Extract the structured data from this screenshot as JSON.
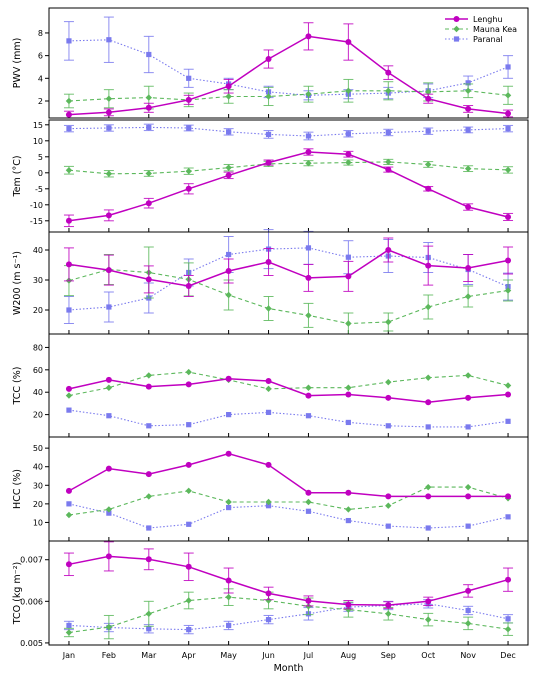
{
  "xlabel": "Month",
  "months": [
    "Jan",
    "Feb",
    "Mar",
    "Apr",
    "May",
    "Jun",
    "Jul",
    "Aug",
    "Sep",
    "Oct",
    "Nov",
    "Dec"
  ],
  "legend": {
    "position": "top-right",
    "entries": [
      "Lenghu",
      "Mauna Kea",
      "Paranal"
    ]
  },
  "colors": {
    "Lenghu": "#c000c0",
    "Mauna Kea": "#5cb85c",
    "Paranal": "#7a7aee"
  },
  "chart_data": [
    {
      "type": "line",
      "ylabel": "PWV (mm)",
      "ylim": [
        0.5,
        10.2
      ],
      "yticks": [
        2,
        4,
        6,
        8
      ],
      "series": [
        {
          "name": "Lenghu",
          "values": [
            0.8,
            1.0,
            1.4,
            2.1,
            3.3,
            5.7,
            7.7,
            7.2,
            4.5,
            2.2,
            1.3,
            0.9
          ],
          "errors": [
            0.3,
            0.3,
            0.4,
            0.4,
            0.6,
            0.8,
            1.2,
            1.6,
            0.6,
            0.4,
            0.3,
            0.3
          ]
        },
        {
          "name": "Mauna Kea",
          "values": [
            2.0,
            2.2,
            2.3,
            2.1,
            2.4,
            2.4,
            2.6,
            2.9,
            2.9,
            2.8,
            2.9,
            2.5
          ],
          "errors": [
            0.6,
            0.8,
            1.0,
            0.6,
            0.6,
            0.8,
            0.7,
            1.0,
            0.8,
            0.8,
            0.6,
            0.8
          ]
        },
        {
          "name": "Paranal",
          "values": [
            7.3,
            7.4,
            6.1,
            4.0,
            3.5,
            2.8,
            2.5,
            2.6,
            2.7,
            2.9,
            3.6,
            5.0
          ],
          "errors": [
            1.7,
            2.0,
            1.6,
            0.8,
            0.5,
            0.5,
            0.4,
            0.4,
            0.5,
            0.6,
            0.6,
            1.0
          ]
        }
      ]
    },
    {
      "type": "line",
      "ylabel": "Tem (°C)",
      "ylim": [
        -18.5,
        16.5
      ],
      "yticks": [
        -15,
        -10,
        -5,
        0,
        5,
        10,
        15
      ],
      "series": [
        {
          "name": "Lenghu",
          "values": [
            -15.0,
            -13.3,
            -9.5,
            -5.0,
            -0.8,
            3.2,
            6.5,
            5.8,
            1.0,
            -5.0,
            -10.7,
            -13.8
          ],
          "errors": [
            1.8,
            1.7,
            1.5,
            1.6,
            1.0,
            0.8,
            1.0,
            0.9,
            0.8,
            0.7,
            1.0,
            1.1
          ]
        },
        {
          "name": "Mauna Kea",
          "values": [
            0.8,
            -0.3,
            -0.2,
            0.5,
            1.6,
            2.8,
            3.0,
            3.2,
            3.4,
            2.6,
            1.3,
            0.9
          ],
          "errors": [
            1.2,
            1.0,
            0.9,
            1.0,
            1.0,
            0.8,
            0.8,
            0.8,
            0.8,
            0.9,
            0.9,
            1.0
          ]
        },
        {
          "name": "Paranal",
          "values": [
            13.8,
            14.0,
            14.2,
            14.0,
            12.8,
            12.0,
            11.5,
            12.2,
            12.6,
            13.0,
            13.4,
            13.8
          ],
          "errors": [
            1.0,
            1.0,
            1.0,
            0.9,
            1.0,
            1.2,
            1.2,
            1.0,
            1.0,
            1.0,
            0.9,
            1.0
          ]
        }
      ]
    },
    {
      "type": "line",
      "ylabel": "W200 (m s⁻¹)",
      "ylim": [
        12,
        46
      ],
      "yticks": [
        20,
        30,
        40
      ],
      "series": [
        {
          "name": "Lenghu",
          "values": [
            35.2,
            33.3,
            30.2,
            28.0,
            33.0,
            36.0,
            30.7,
            31.2,
            40.0,
            34.8,
            34.0,
            36.5
          ],
          "errors": [
            5.5,
            5.0,
            4.5,
            3.5,
            4.0,
            4.5,
            4.5,
            5.0,
            4.0,
            6.5,
            4.5,
            4.5
          ]
        },
        {
          "name": "Mauna Kea",
          "values": [
            29.8,
            33.5,
            32.5,
            30.2,
            25.0,
            20.5,
            18.2,
            15.5,
            16.0,
            21.0,
            24.5,
            26.5
          ],
          "errors": [
            5.0,
            5.0,
            8.5,
            5.5,
            5.0,
            4.0,
            4.0,
            3.5,
            3.0,
            4.0,
            3.5,
            3.5
          ]
        },
        {
          "name": "Paranal",
          "values": [
            20.0,
            21.0,
            24.0,
            32.5,
            38.5,
            40.3,
            40.7,
            37.6,
            38.0,
            37.5,
            33.5,
            27.8
          ],
          "errors": [
            4.5,
            5.0,
            5.0,
            4.5,
            6.0,
            6.5,
            5.5,
            5.5,
            5.5,
            5.0,
            5.0,
            4.5
          ]
        }
      ]
    },
    {
      "type": "line",
      "ylabel": "TCC (%)",
      "ylim": [
        0,
        92
      ],
      "yticks": [
        20,
        40,
        60,
        80
      ],
      "series": [
        {
          "name": "Lenghu",
          "values": [
            43,
            51,
            45,
            47,
            52,
            50,
            37,
            38,
            35,
            31,
            35,
            38
          ]
        },
        {
          "name": "Mauna Kea",
          "values": [
            37,
            44,
            55,
            58,
            51,
            43,
            44,
            44,
            49,
            53,
            55,
            46
          ]
        },
        {
          "name": "Paranal",
          "values": [
            24,
            19,
            10,
            11,
            20,
            22,
            19,
            13,
            10,
            9,
            9,
            14
          ]
        }
      ]
    },
    {
      "type": "line",
      "ylabel": "HCC (%)",
      "ylim": [
        0,
        56
      ],
      "yticks": [
        10,
        20,
        30,
        40,
        50
      ],
      "series": [
        {
          "name": "Lenghu",
          "values": [
            27,
            39,
            36,
            41,
            47,
            41,
            26,
            26,
            24,
            24,
            24,
            24
          ]
        },
        {
          "name": "Mauna Kea",
          "values": [
            14,
            17,
            24,
            27,
            21,
            21,
            21,
            17,
            19,
            29,
            29,
            23
          ]
        },
        {
          "name": "Paranal",
          "values": [
            20,
            15,
            7,
            9,
            18,
            19,
            16,
            11,
            8,
            7,
            8,
            13
          ]
        }
      ]
    },
    {
      "type": "line",
      "ylabel": "TCO (kg m⁻²)",
      "ylim": [
        0.00495,
        0.00745
      ],
      "yticks": [
        0.005,
        0.006,
        0.007
      ],
      "series": [
        {
          "name": "Lenghu",
          "values": [
            0.00689,
            0.00708,
            0.00701,
            0.00683,
            0.0065,
            0.00619,
            0.00601,
            0.00592,
            0.00591,
            0.006,
            0.00625,
            0.00652
          ],
          "errors": [
            0.00027,
            0.00035,
            0.00025,
            0.00033,
            0.0003,
            0.00015,
            0.00012,
            0.0001,
            8e-05,
            0.0001,
            0.00015,
            0.00028
          ]
        },
        {
          "name": "Mauna Kea",
          "values": [
            0.00525,
            0.00538,
            0.0057,
            0.00602,
            0.0061,
            0.00602,
            0.00588,
            0.0058,
            0.0057,
            0.00556,
            0.00547,
            0.00533
          ],
          "errors": [
            0.0001,
            0.00028,
            0.0003,
            0.0002,
            0.0002,
            0.0002,
            0.0002,
            0.00018,
            0.00015,
            0.00015,
            0.00015,
            0.00015
          ]
        },
        {
          "name": "Paranal",
          "values": [
            0.00542,
            0.00537,
            0.00534,
            0.00532,
            0.00542,
            0.00556,
            0.0057,
            0.00586,
            0.0059,
            0.00594,
            0.00578,
            0.00558
          ],
          "errors": [
            0.0001,
            0.0001,
            0.0001,
            0.0001,
            0.0001,
            0.0001,
            0.00015,
            0.0001,
            0.0001,
            0.0001,
            0.0001,
            0.0001
          ]
        }
      ]
    }
  ]
}
